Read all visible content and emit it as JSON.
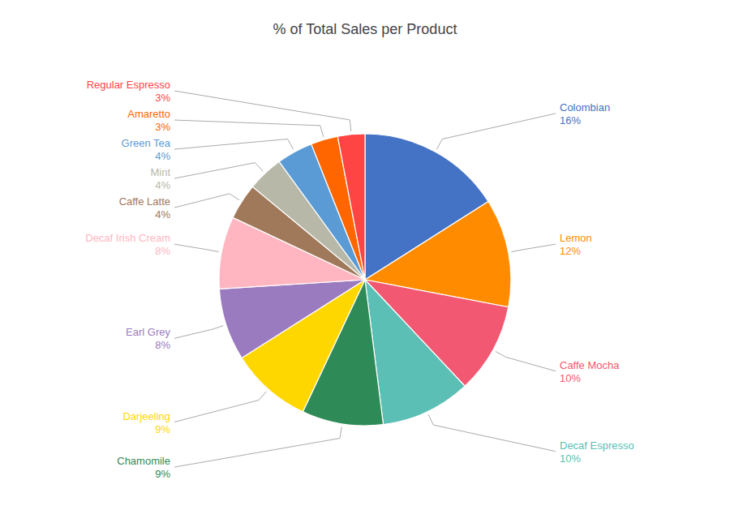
{
  "chart_data": {
    "type": "pie",
    "title": "% of Total Sales per Product",
    "categories": [
      "Colombian",
      "Lemon",
      "Caffe Mocha",
      "Decaf Espresso",
      "Chamomile",
      "Darjeeling",
      "Earl Grey",
      "Decaf Irish Cream",
      "Caffe Latte",
      "Mint",
      "Green Tea",
      "Amaretto",
      "Regular Espresso"
    ],
    "values": [
      16,
      12,
      10,
      10,
      9,
      9,
      8,
      8,
      4,
      4,
      4,
      3,
      3
    ],
    "value_labels": [
      "16%",
      "12%",
      "10%",
      "10%",
      "9%",
      "9%",
      "8%",
      "8%",
      "4%",
      "4%",
      "4%",
      "3%",
      "3%"
    ],
    "colors": [
      "#4472C4",
      "#FF8C00",
      "#F25872",
      "#5BBFB5",
      "#2E8B57",
      "#FFD700",
      "#9B7BBF",
      "#FFB6C1",
      "#A0785A",
      "#B8B8A8",
      "#5B9BD5",
      "#FF6600",
      "#FF4444"
    ],
    "data_labels": true
  }
}
